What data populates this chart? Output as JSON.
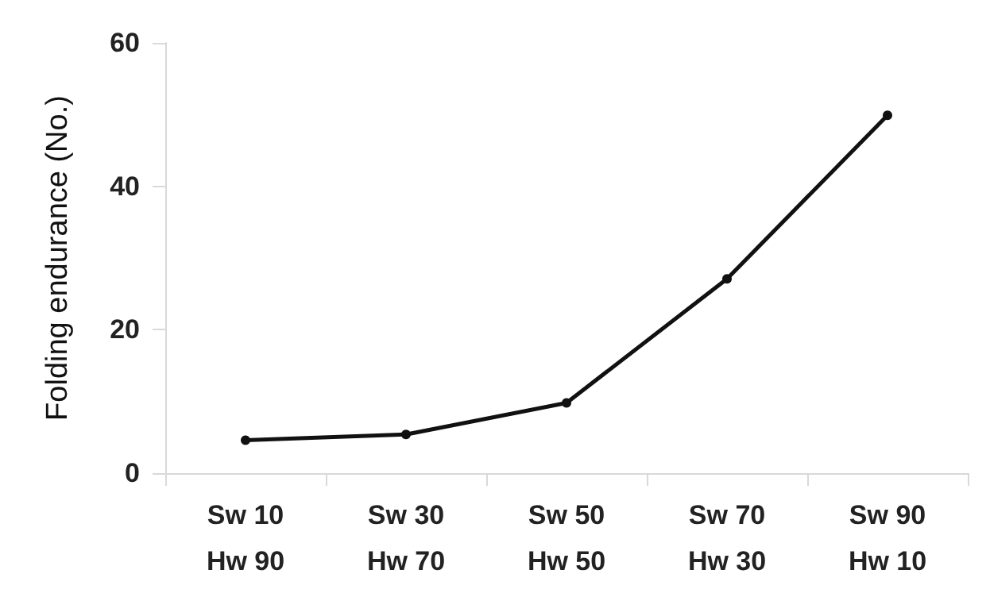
{
  "chart_data": {
    "type": "line",
    "ylabel": "Folding endurance (No.)",
    "categories": [
      "Sw 10\nHw 90",
      "Sw 30\nHw 70",
      "Sw 50\nHw 50",
      "Sw 70\nHw 30",
      "Sw 90\nHw 10"
    ],
    "series": [
      {
        "color": "#111111",
        "values": [
          4.6,
          5.4,
          9.8,
          27.1,
          49.9
        ]
      }
    ],
    "ylim": [
      0,
      60
    ],
    "yticks": [
      0,
      20,
      40,
      60
    ],
    "grid": false,
    "marker": "circle",
    "line_style": "solid"
  }
}
